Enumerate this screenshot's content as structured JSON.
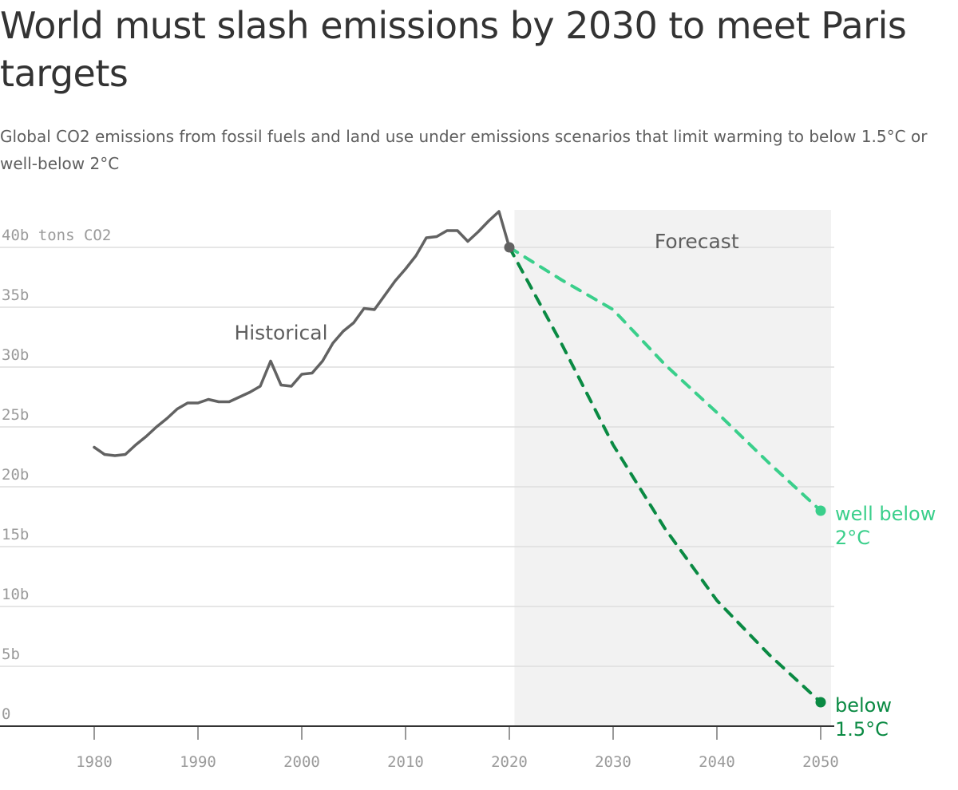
{
  "title": "World must slash emissions by 2030 to meet Paris targets",
  "subtitle": "Global CO2 emissions from fossil fuels and land use under emissions scenarios that limit warming to below 1.5°C or well-below 2°C",
  "colors": {
    "historical": "#626262",
    "well_below_2": "#3acf8b",
    "below_1_5": "#0a8a43",
    "forecast_bg": "#f2f2f2",
    "grid": "#dedede",
    "axis": "#333333"
  },
  "chart_data": {
    "type": "line",
    "title": "World must slash emissions by 2030 to meet Paris targets",
    "subtitle": "Global CO2 emissions from fossil fuels and land use under emissions scenarios that limit warming to below 1.5°C or well-below 2°C",
    "y_unit_label": "40b tons CO2",
    "x_ticks": [
      1980,
      1990,
      2000,
      2010,
      2020,
      2030,
      2040,
      2050
    ],
    "y_ticks": [
      {
        "value": 0,
        "label": "0"
      },
      {
        "value": 5,
        "label": "5b"
      },
      {
        "value": 10,
        "label": "10b"
      },
      {
        "value": 15,
        "label": "15b"
      },
      {
        "value": 20,
        "label": "20b"
      },
      {
        "value": 25,
        "label": "25b"
      },
      {
        "value": 30,
        "label": "30b"
      },
      {
        "value": 35,
        "label": "35b"
      },
      {
        "value": 40,
        "label": "40b tons CO2"
      }
    ],
    "xlim": [
      1972.5,
      2051
    ],
    "ylim": [
      0,
      43
    ],
    "grid": true,
    "forecast_region": {
      "x_start": 2020.5,
      "x_end": 2051,
      "label": "Forecast"
    },
    "annotations": [
      {
        "text": "Historical",
        "x": 1998,
        "y": 32.3
      }
    ],
    "series": [
      {
        "key": "historical",
        "style": "solid",
        "x": [
          1980,
          1981,
          1982,
          1983,
          1984,
          1985,
          1986,
          1987,
          1988,
          1989,
          1990,
          1991,
          1992,
          1993,
          1994,
          1995,
          1996,
          1997,
          1998,
          1999,
          2000,
          2001,
          2002,
          2003,
          2004,
          2005,
          2006,
          2007,
          2008,
          2009,
          2010,
          2011,
          2012,
          2013,
          2014,
          2015,
          2016,
          2017,
          2018,
          2019,
          2020
        ],
        "y": [
          23.3,
          22.7,
          22.6,
          22.7,
          23.5,
          24.2,
          25.0,
          25.7,
          26.5,
          27.0,
          27.0,
          27.3,
          27.1,
          27.1,
          27.5,
          27.9,
          28.4,
          30.5,
          28.5,
          28.4,
          29.4,
          29.5,
          30.5,
          32.0,
          33.0,
          33.7,
          34.9,
          34.8,
          36.0,
          37.2,
          38.2,
          39.3,
          40.8,
          40.9,
          41.4,
          41.4,
          40.5,
          41.3,
          42.2,
          43.0,
          40.0
        ]
      },
      {
        "key": "well_below_2",
        "name": "well below 2°C",
        "style": "dashed",
        "x": [
          2020,
          2025,
          2030,
          2035,
          2040,
          2045,
          2050
        ],
        "y": [
          40.0,
          37.3,
          34.8,
          30.2,
          26.2,
          22.0,
          18.0
        ]
      },
      {
        "key": "below_1_5",
        "name": "below 1.5°C",
        "style": "dashed",
        "x": [
          2020,
          2025,
          2030,
          2035,
          2040,
          2045,
          2050
        ],
        "y": [
          40.0,
          32.0,
          23.5,
          16.5,
          10.5,
          6.0,
          2.0
        ]
      }
    ],
    "end_labels": [
      {
        "key": "well_below_2",
        "lines": [
          "well below",
          "2°C"
        ]
      },
      {
        "key": "below_1_5",
        "lines": [
          "below",
          "1.5°C"
        ]
      }
    ]
  }
}
